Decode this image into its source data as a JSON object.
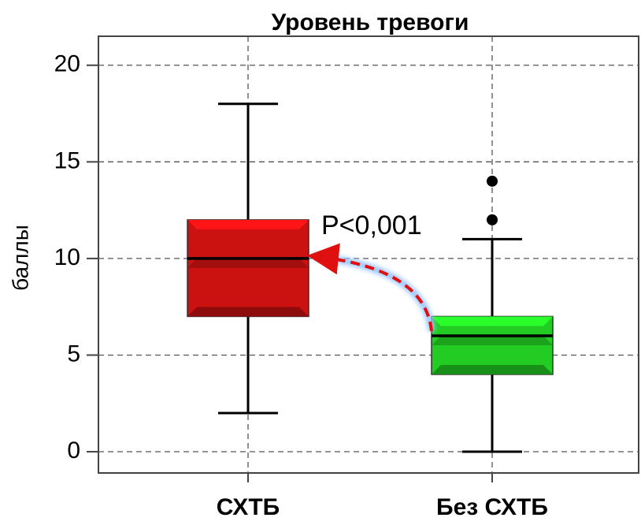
{
  "chart_data": {
    "type": "box",
    "title": "Уровень тревоги",
    "ylabel": "баллы",
    "categories": [
      "СХТБ",
      "Без СХТБ"
    ],
    "series": [
      {
        "name": "СХТБ",
        "color": "#cc1111",
        "min": 2,
        "q1": 7,
        "median": 10,
        "q3": 12,
        "max": 18,
        "outliers": []
      },
      {
        "name": "Без СХТБ",
        "color": "#22cc22",
        "min": 0,
        "q1": 4,
        "median": 6,
        "q3": 7,
        "max": 11,
        "outliers": [
          12,
          14
        ]
      }
    ],
    "ylim": [
      -1.1,
      21.5
    ],
    "yticks": [
      0,
      5,
      10,
      15,
      20
    ],
    "grid": true,
    "annotation": "P<0,001"
  }
}
